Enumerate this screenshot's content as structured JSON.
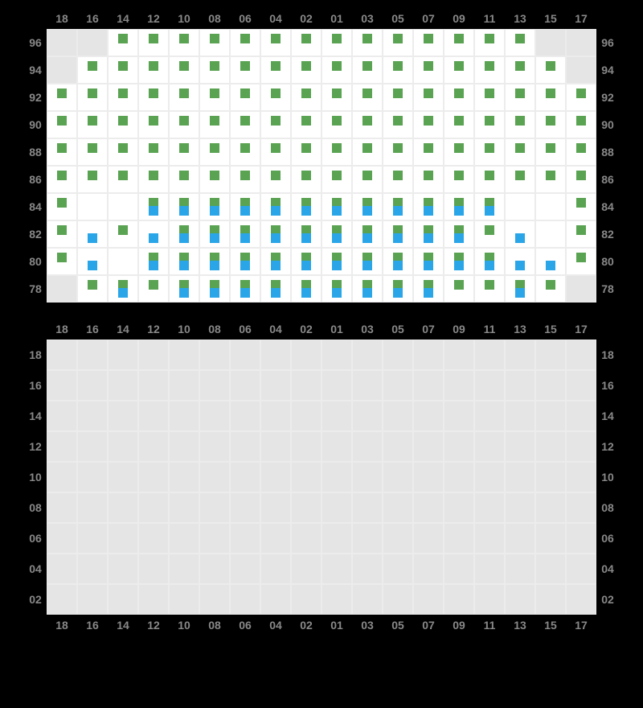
{
  "colors": {
    "green": "#5aa352",
    "blue": "#2aa6e8",
    "gray_cell": "#e5e5e5",
    "white_cell": "#ffffff",
    "border": "#ececec",
    "label": "#888888",
    "bg": "#000000"
  },
  "columns": [
    "18",
    "16",
    "14",
    "12",
    "10",
    "08",
    "06",
    "04",
    "02",
    "01",
    "03",
    "05",
    "07",
    "09",
    "11",
    "13",
    "15",
    "17"
  ],
  "upper": {
    "rows": [
      "96",
      "94",
      "92",
      "90",
      "88",
      "86",
      "84",
      "82",
      "80",
      "78"
    ],
    "cells": {
      "96": [
        {
          "s": "gray"
        },
        {
          "s": "gray"
        },
        {
          "s": "avail",
          "g": 1
        },
        {
          "s": "avail",
          "g": 1
        },
        {
          "s": "avail",
          "g": 1
        },
        {
          "s": "avail",
          "g": 1
        },
        {
          "s": "avail",
          "g": 1
        },
        {
          "s": "avail",
          "g": 1
        },
        {
          "s": "avail",
          "g": 1
        },
        {
          "s": "avail",
          "g": 1
        },
        {
          "s": "avail",
          "g": 1
        },
        {
          "s": "avail",
          "g": 1
        },
        {
          "s": "avail",
          "g": 1
        },
        {
          "s": "avail",
          "g": 1
        },
        {
          "s": "avail",
          "g": 1
        },
        {
          "s": "avail",
          "g": 1
        },
        {
          "s": "gray"
        },
        {
          "s": "gray"
        }
      ],
      "94": [
        {
          "s": "gray"
        },
        {
          "s": "avail",
          "g": 1
        },
        {
          "s": "avail",
          "g": 1
        },
        {
          "s": "avail",
          "g": 1
        },
        {
          "s": "avail",
          "g": 1
        },
        {
          "s": "avail",
          "g": 1
        },
        {
          "s": "avail",
          "g": 1
        },
        {
          "s": "avail",
          "g": 1
        },
        {
          "s": "avail",
          "g": 1
        },
        {
          "s": "avail",
          "g": 1
        },
        {
          "s": "avail",
          "g": 1
        },
        {
          "s": "avail",
          "g": 1
        },
        {
          "s": "avail",
          "g": 1
        },
        {
          "s": "avail",
          "g": 1
        },
        {
          "s": "avail",
          "g": 1
        },
        {
          "s": "avail",
          "g": 1
        },
        {
          "s": "avail",
          "g": 1
        },
        {
          "s": "gray"
        }
      ],
      "92": [
        {
          "s": "avail",
          "g": 1
        },
        {
          "s": "avail",
          "g": 1
        },
        {
          "s": "avail",
          "g": 1
        },
        {
          "s": "avail",
          "g": 1
        },
        {
          "s": "avail",
          "g": 1
        },
        {
          "s": "avail",
          "g": 1
        },
        {
          "s": "avail",
          "g": 1
        },
        {
          "s": "avail",
          "g": 1
        },
        {
          "s": "avail",
          "g": 1
        },
        {
          "s": "avail",
          "g": 1
        },
        {
          "s": "avail",
          "g": 1
        },
        {
          "s": "avail",
          "g": 1
        },
        {
          "s": "avail",
          "g": 1
        },
        {
          "s": "avail",
          "g": 1
        },
        {
          "s": "avail",
          "g": 1
        },
        {
          "s": "avail",
          "g": 1
        },
        {
          "s": "avail",
          "g": 1
        },
        {
          "s": "avail",
          "g": 1
        }
      ],
      "90": [
        {
          "s": "avail",
          "g": 1
        },
        {
          "s": "avail",
          "g": 1
        },
        {
          "s": "avail",
          "g": 1
        },
        {
          "s": "avail",
          "g": 1
        },
        {
          "s": "avail",
          "g": 1
        },
        {
          "s": "avail",
          "g": 1
        },
        {
          "s": "avail",
          "g": 1
        },
        {
          "s": "avail",
          "g": 1
        },
        {
          "s": "avail",
          "g": 1
        },
        {
          "s": "avail",
          "g": 1
        },
        {
          "s": "avail",
          "g": 1
        },
        {
          "s": "avail",
          "g": 1
        },
        {
          "s": "avail",
          "g": 1
        },
        {
          "s": "avail",
          "g": 1
        },
        {
          "s": "avail",
          "g": 1
        },
        {
          "s": "avail",
          "g": 1
        },
        {
          "s": "avail",
          "g": 1
        },
        {
          "s": "avail",
          "g": 1
        }
      ],
      "88": [
        {
          "s": "avail",
          "g": 1
        },
        {
          "s": "avail",
          "g": 1
        },
        {
          "s": "avail",
          "g": 1
        },
        {
          "s": "avail",
          "g": 1
        },
        {
          "s": "avail",
          "g": 1
        },
        {
          "s": "avail",
          "g": 1
        },
        {
          "s": "avail",
          "g": 1
        },
        {
          "s": "avail",
          "g": 1
        },
        {
          "s": "avail",
          "g": 1
        },
        {
          "s": "avail",
          "g": 1
        },
        {
          "s": "avail",
          "g": 1
        },
        {
          "s": "avail",
          "g": 1
        },
        {
          "s": "avail",
          "g": 1
        },
        {
          "s": "avail",
          "g": 1
        },
        {
          "s": "avail",
          "g": 1
        },
        {
          "s": "avail",
          "g": 1
        },
        {
          "s": "avail",
          "g": 1
        },
        {
          "s": "avail",
          "g": 1
        }
      ],
      "86": [
        {
          "s": "avail",
          "g": 1
        },
        {
          "s": "avail",
          "g": 1
        },
        {
          "s": "avail",
          "g": 1
        },
        {
          "s": "avail",
          "g": 1
        },
        {
          "s": "avail",
          "g": 1
        },
        {
          "s": "avail",
          "g": 1
        },
        {
          "s": "avail",
          "g": 1
        },
        {
          "s": "avail",
          "g": 1
        },
        {
          "s": "avail",
          "g": 1
        },
        {
          "s": "avail",
          "g": 1
        },
        {
          "s": "avail",
          "g": 1
        },
        {
          "s": "avail",
          "g": 1
        },
        {
          "s": "avail",
          "g": 1
        },
        {
          "s": "avail",
          "g": 1
        },
        {
          "s": "avail",
          "g": 1
        },
        {
          "s": "avail",
          "g": 1
        },
        {
          "s": "avail",
          "g": 1
        },
        {
          "s": "avail",
          "g": 1
        }
      ],
      "84": [
        {
          "s": "avail",
          "g": 1
        },
        {
          "s": "avail"
        },
        {
          "s": "avail"
        },
        {
          "s": "avail",
          "g": 1,
          "b": 1
        },
        {
          "s": "avail",
          "g": 1,
          "b": 1
        },
        {
          "s": "avail",
          "g": 1,
          "b": 1
        },
        {
          "s": "avail",
          "g": 1,
          "b": 1
        },
        {
          "s": "avail",
          "g": 1,
          "b": 1
        },
        {
          "s": "avail",
          "g": 1,
          "b": 1
        },
        {
          "s": "avail",
          "g": 1,
          "b": 1
        },
        {
          "s": "avail",
          "g": 1,
          "b": 1
        },
        {
          "s": "avail",
          "g": 1,
          "b": 1
        },
        {
          "s": "avail",
          "g": 1,
          "b": 1
        },
        {
          "s": "avail",
          "g": 1,
          "b": 1
        },
        {
          "s": "avail",
          "g": 1,
          "b": 1
        },
        {
          "s": "avail"
        },
        {
          "s": "avail"
        },
        {
          "s": "avail",
          "g": 1
        }
      ],
      "82": [
        {
          "s": "avail",
          "g": 1
        },
        {
          "s": "avail",
          "b": 1
        },
        {
          "s": "avail",
          "g": 1
        },
        {
          "s": "avail",
          "b": 1
        },
        {
          "s": "avail",
          "g": 1,
          "b": 1
        },
        {
          "s": "avail",
          "g": 1,
          "b": 1
        },
        {
          "s": "avail",
          "g": 1,
          "b": 1
        },
        {
          "s": "avail",
          "g": 1,
          "b": 1
        },
        {
          "s": "avail",
          "g": 1,
          "b": 1
        },
        {
          "s": "avail",
          "g": 1,
          "b": 1
        },
        {
          "s": "avail",
          "g": 1,
          "b": 1
        },
        {
          "s": "avail",
          "g": 1,
          "b": 1
        },
        {
          "s": "avail",
          "g": 1,
          "b": 1
        },
        {
          "s": "avail",
          "g": 1,
          "b": 1
        },
        {
          "s": "avail",
          "g": 1
        },
        {
          "s": "avail",
          "b": 1
        },
        {
          "s": "avail"
        },
        {
          "s": "avail",
          "g": 1
        }
      ],
      "80": [
        {
          "s": "avail",
          "g": 1
        },
        {
          "s": "avail",
          "b": 1
        },
        {
          "s": "avail"
        },
        {
          "s": "avail",
          "g": 1,
          "b": 1
        },
        {
          "s": "avail",
          "g": 1,
          "b": 1
        },
        {
          "s": "avail",
          "g": 1,
          "b": 1
        },
        {
          "s": "avail",
          "g": 1,
          "b": 1
        },
        {
          "s": "avail",
          "g": 1,
          "b": 1
        },
        {
          "s": "avail",
          "g": 1,
          "b": 1
        },
        {
          "s": "avail",
          "g": 1,
          "b": 1
        },
        {
          "s": "avail",
          "g": 1,
          "b": 1
        },
        {
          "s": "avail",
          "g": 1,
          "b": 1
        },
        {
          "s": "avail",
          "g": 1,
          "b": 1
        },
        {
          "s": "avail",
          "g": 1,
          "b": 1
        },
        {
          "s": "avail",
          "g": 1,
          "b": 1
        },
        {
          "s": "avail",
          "b": 1
        },
        {
          "s": "avail",
          "b": 1
        },
        {
          "s": "avail",
          "g": 1
        }
      ],
      "78": [
        {
          "s": "gray"
        },
        {
          "s": "avail",
          "g": 1
        },
        {
          "s": "avail",
          "g": 1,
          "b": 1
        },
        {
          "s": "avail",
          "g": 1
        },
        {
          "s": "avail",
          "g": 1,
          "b": 1
        },
        {
          "s": "avail",
          "g": 1,
          "b": 1
        },
        {
          "s": "avail",
          "g": 1,
          "b": 1
        },
        {
          "s": "avail",
          "g": 1,
          "b": 1
        },
        {
          "s": "avail",
          "g": 1,
          "b": 1
        },
        {
          "s": "avail",
          "g": 1,
          "b": 1
        },
        {
          "s": "avail",
          "g": 1,
          "b": 1
        },
        {
          "s": "avail",
          "g": 1,
          "b": 1
        },
        {
          "s": "avail",
          "g": 1,
          "b": 1
        },
        {
          "s": "avail",
          "g": 1
        },
        {
          "s": "avail",
          "g": 1
        },
        {
          "s": "avail",
          "g": 1,
          "b": 1
        },
        {
          "s": "avail",
          "g": 1
        },
        {
          "s": "gray"
        }
      ]
    }
  },
  "lower": {
    "rows": [
      "18",
      "16",
      "14",
      "12",
      "10",
      "08",
      "06",
      "04",
      "02"
    ],
    "all_gray": true
  }
}
